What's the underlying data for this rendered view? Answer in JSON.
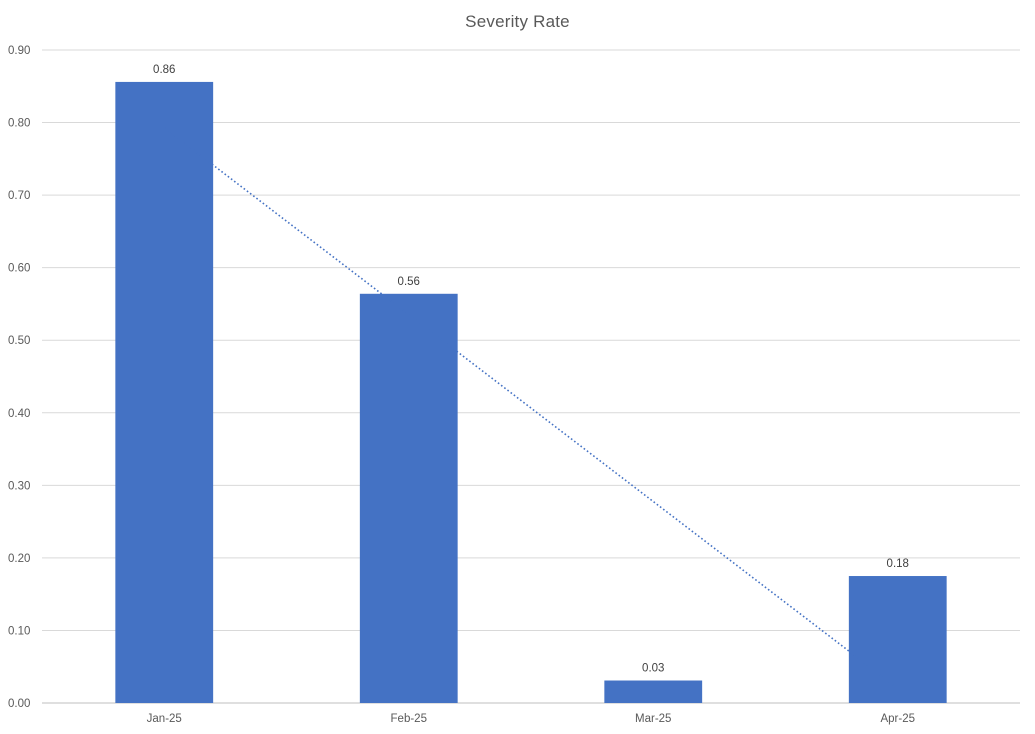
{
  "chart_data": {
    "type": "bar",
    "title": "Severity Rate",
    "categories": [
      "Jan-25",
      "Feb-25",
      "Mar-25",
      "Apr-25"
    ],
    "values": [
      0.856,
      0.564,
      0.031,
      0.175
    ],
    "data_labels": [
      "0.86",
      "0.56",
      "0.03",
      "0.18"
    ],
    "ylim": [
      0,
      0.9
    ],
    "yticks": [
      0,
      0.1,
      0.2,
      0.3,
      0.4,
      0.5,
      0.6,
      0.7,
      0.8,
      0.9
    ],
    "ytick_labels": [
      "0.00",
      "0.10",
      "0.20",
      "0.30",
      "0.40",
      "0.50",
      "0.60",
      "0.70",
      "0.80",
      "0.90"
    ],
    "xlabel": "",
    "ylabel": "",
    "grid": true,
    "legend": "none",
    "bar_color": "#4472C4",
    "trendline": {
      "type": "linear",
      "style": "dotted",
      "color": "#4472C4"
    }
  }
}
